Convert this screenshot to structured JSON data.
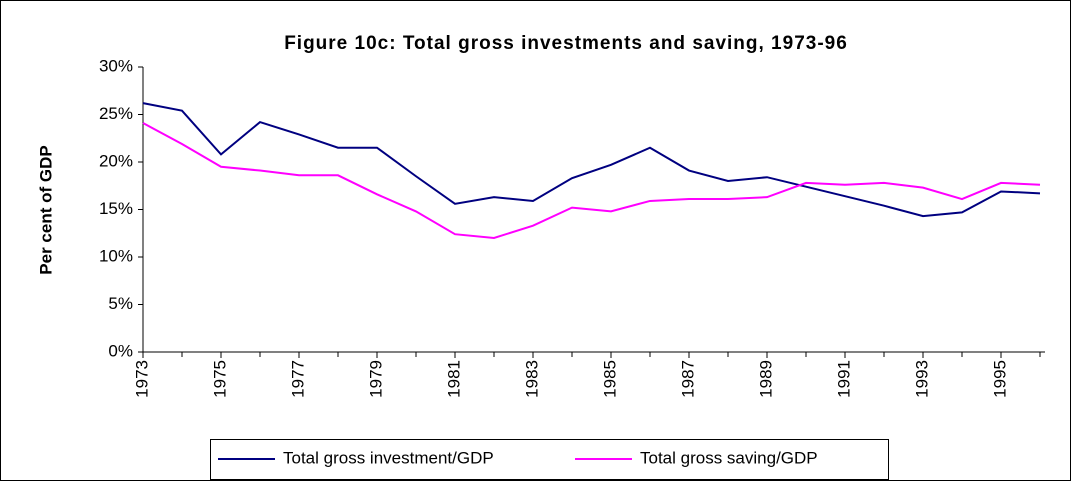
{
  "chart_data": {
    "type": "line",
    "title": "Figure 10c: Total gross investments and saving, 1973-96",
    "y_label": "Per cent of GDP",
    "x": [
      1973,
      1974,
      1975,
      1976,
      1977,
      1978,
      1979,
      1980,
      1981,
      1982,
      1983,
      1984,
      1985,
      1986,
      1987,
      1988,
      1989,
      1990,
      1991,
      1992,
      1993,
      1994,
      1995,
      1996
    ],
    "xlim": [
      1973,
      1996
    ],
    "xticks": [
      1973,
      1975,
      1977,
      1979,
      1981,
      1983,
      1985,
      1987,
      1989,
      1991,
      1993,
      1995
    ],
    "ylim": [
      0,
      30
    ],
    "yticks": [
      {
        "value": 0,
        "label": "0%"
      },
      {
        "value": 5,
        "label": "5%"
      },
      {
        "value": 10,
        "label": "10%"
      },
      {
        "value": 15,
        "label": "15%"
      },
      {
        "value": 20,
        "label": "20%"
      },
      {
        "value": 25,
        "label": "25%"
      },
      {
        "value": 30,
        "label": "30%"
      }
    ],
    "grid": false,
    "legend": "bottom",
    "series": [
      {
        "name": "Total gross investment/GDP",
        "color": "#000080",
        "values": [
          26.2,
          25.4,
          20.8,
          24.2,
          22.9,
          21.5,
          21.5,
          18.5,
          15.6,
          16.3,
          15.9,
          18.3,
          19.7,
          21.5,
          19.1,
          18.0,
          18.4,
          17.4,
          16.4,
          15.4,
          14.3,
          14.7,
          16.9,
          16.7
        ]
      },
      {
        "name": "Total gross saving/GDP",
        "color": "#ff00ff",
        "values": [
          24.1,
          21.9,
          19.5,
          19.1,
          18.6,
          18.6,
          16.6,
          14.8,
          12.4,
          12.0,
          13.3,
          15.2,
          14.8,
          15.9,
          16.1,
          16.1,
          16.3,
          17.8,
          17.6,
          17.8,
          17.3,
          16.1,
          17.8,
          17.6
        ]
      }
    ]
  }
}
